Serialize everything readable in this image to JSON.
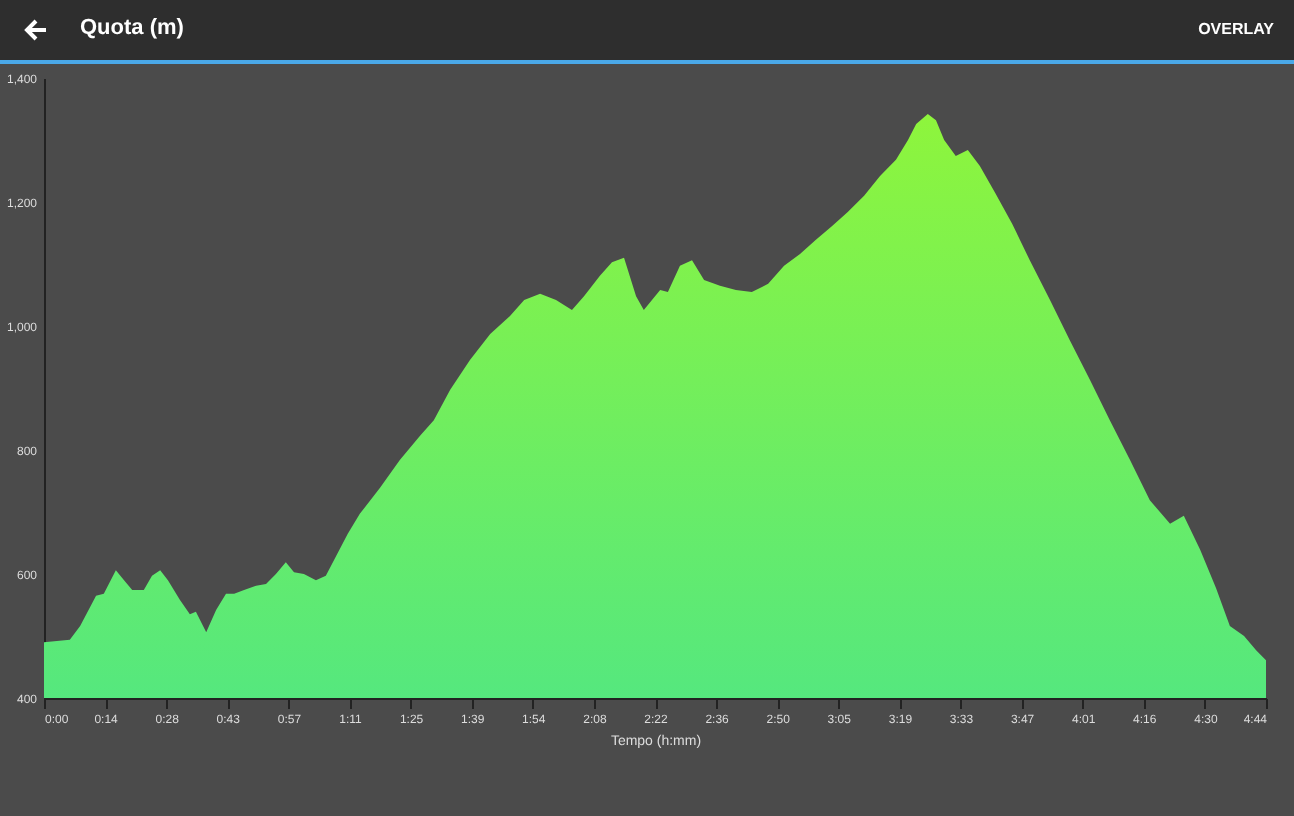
{
  "chart_data": {
    "type": "area",
    "title": "Quota (m)",
    "xlabel": "Tempo (h:mm)",
    "annotations": [
      "OVERLAY"
    ],
    "x": [
      0,
      6.0,
      8.4,
      12.1,
      13.9,
      16.7,
      18.6,
      20.5,
      23.2,
      25.1,
      27.0,
      28.8,
      31.6,
      33.9,
      35.3,
      37.7,
      40.0,
      42.3,
      44.2,
      46.5,
      49.3,
      51.6,
      53.9,
      56.2,
      58.1,
      60.4,
      63.2,
      65.5,
      67.9,
      70.6,
      73.4,
      78.1,
      82.7,
      87.4,
      90.6,
      94.4,
      99.0,
      103.7,
      108.3,
      111.6,
      115.3,
      119.0,
      122.7,
      125.5,
      129.2,
      132.0,
      134.8,
      137.6,
      139.4,
      141.3,
      143.2,
      145.0,
      147.8,
      150.6,
      153.4,
      157.1,
      160.8,
      164.5,
      168.3,
      172.0,
      175.7,
      179.4,
      183.1,
      186.8,
      190.6,
      194.3,
      198.0,
      200.8,
      202.7,
      205.4,
      207.3,
      209.2,
      211.9,
      214.7,
      217.5,
      221.2,
      225.0,
      229.1,
      233.8,
      238.4,
      243.1,
      247.7,
      252.4,
      257.0,
      261.7,
      264.9,
      268.7,
      272.4,
      275.6,
      278.9,
      281.7,
      284.0
    ],
    "series": [
      {
        "color": "#8ef53c",
        "values": [
          490,
          494,
          516,
          565,
          568,
          606,
          590,
          574,
          574,
          597,
          606,
          590,
          558,
          535,
          539,
          506,
          542,
          568,
          568,
          574,
          581,
          584,
          600,
          619,
          603,
          600,
          590,
          597,
          629,
          665,
          697,
          739,
          784,
          823,
          848,
          897,
          945,
          987,
          1016,
          1042,
          1052,
          1042,
          1026,
          1048,
          1081,
          1103,
          1110,
          1048,
          1026,
          1042,
          1058,
          1055,
          1097,
          1106,
          1074,
          1065,
          1058,
          1055,
          1068,
          1097,
          1116,
          1139,
          1161,
          1184,
          1210,
          1242,
          1268,
          1300,
          1326,
          1342,
          1332,
          1300,
          1274,
          1284,
          1258,
          1213,
          1165,
          1106,
          1042,
          977,
          913,
          848,
          784,
          719,
          681,
          694,
          639,
          577,
          516,
          500,
          477,
          461
        ]
      }
    ],
    "xlim": [
      0,
      284
    ],
    "xticks": [
      {
        "value": 0,
        "label": "0:00"
      },
      {
        "value": 14.2,
        "label": "0:14"
      },
      {
        "value": 28.4,
        "label": "0:28"
      },
      {
        "value": 42.6,
        "label": "0:43"
      },
      {
        "value": 56.8,
        "label": "0:57"
      },
      {
        "value": 71,
        "label": "1:11"
      },
      {
        "value": 85.2,
        "label": "1:25"
      },
      {
        "value": 99.4,
        "label": "1:39"
      },
      {
        "value": 113.6,
        "label": "1:54"
      },
      {
        "value": 127.8,
        "label": "2:08"
      },
      {
        "value": 142,
        "label": "2:22"
      },
      {
        "value": 156.2,
        "label": "2:36"
      },
      {
        "value": 170.4,
        "label": "2:50"
      },
      {
        "value": 184.6,
        "label": "3:05"
      },
      {
        "value": 198.8,
        "label": "3:19"
      },
      {
        "value": 213,
        "label": "3:33"
      },
      {
        "value": 227.2,
        "label": "3:47"
      },
      {
        "value": 241.4,
        "label": "4:01"
      },
      {
        "value": 255.6,
        "label": "4:16"
      },
      {
        "value": 269.8,
        "label": "4:30"
      },
      {
        "value": 284,
        "label": "4:44"
      }
    ],
    "ylim": [
      400,
      1400
    ],
    "yticks": [
      {
        "value": 400,
        "label": "400"
      },
      {
        "value": 600,
        "label": "600"
      },
      {
        "value": 800,
        "label": "800"
      },
      {
        "value": 1000,
        "label": "1,000"
      },
      {
        "value": 1200,
        "label": "1,200"
      },
      {
        "value": 1400,
        "label": "1,400"
      }
    ],
    "grid": false
  }
}
